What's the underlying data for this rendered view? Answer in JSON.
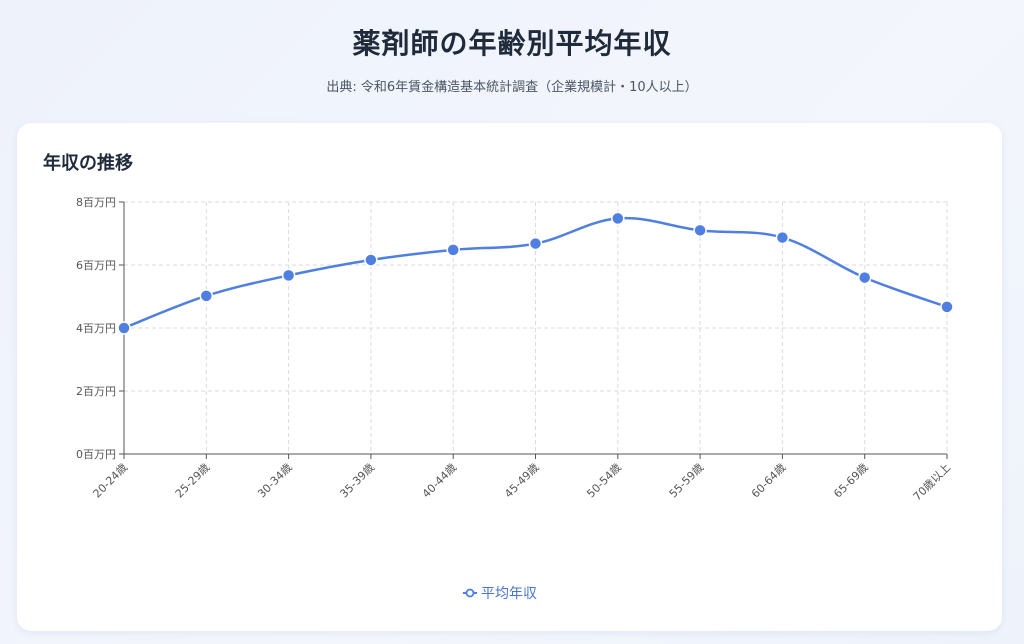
{
  "page": {
    "title": "薬剤師の年齢別平均年収",
    "subtitle": "出典: 令和6年賃金構造基本統計調査（企業規模計・10人以上）"
  },
  "card": {
    "title": "年収の推移"
  },
  "colors": {
    "line": "#4f80e1",
    "grid": "#d9dbe0",
    "axis": "#555555"
  },
  "chart_data": {
    "type": "line",
    "categories": [
      "20-24歳",
      "25-29歳",
      "30-34歳",
      "35-39歳",
      "40-44歳",
      "45-49歳",
      "50-54歳",
      "55-59歳",
      "60-64歳",
      "65-69歳",
      "70歳以上"
    ],
    "series": [
      {
        "name": "平均年収",
        "values": [
          4.0,
          5.02,
          5.67,
          6.16,
          6.48,
          6.68,
          7.48,
          7.1,
          6.87,
          5.6,
          4.67
        ]
      }
    ],
    "y_unit": "百万円",
    "y_ticks": [
      "0百万円",
      "2百万円",
      "4百万円",
      "6百万円",
      "8百万円"
    ],
    "ylim": [
      0,
      8
    ],
    "grid": true,
    "smooth": true,
    "legend": "bottom-center"
  }
}
